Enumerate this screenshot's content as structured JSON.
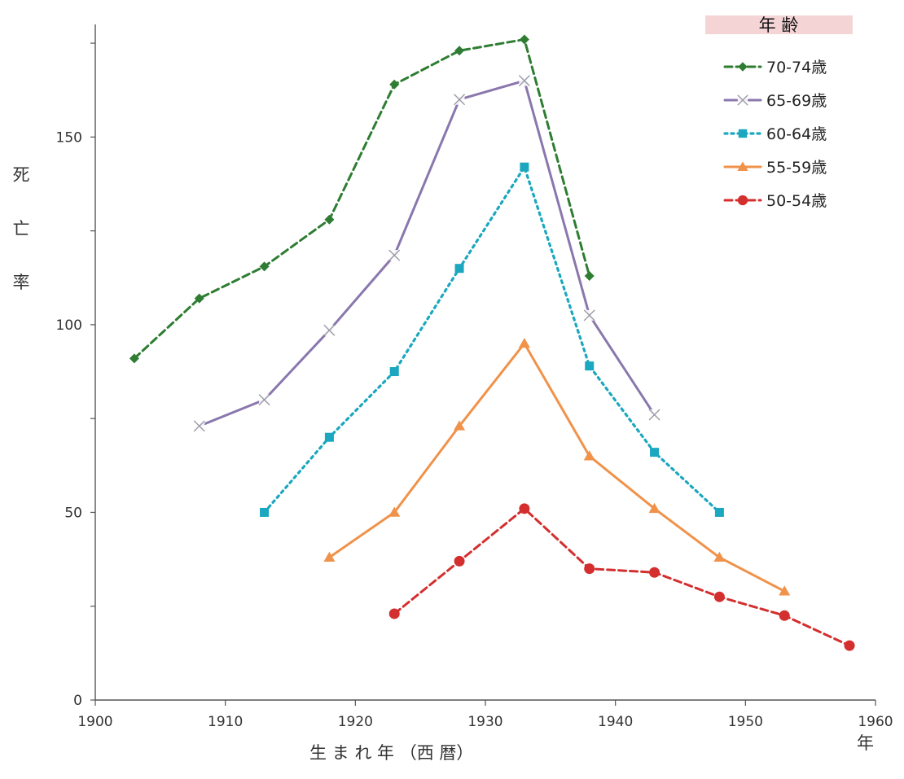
{
  "chart_data": {
    "type": "line",
    "xlabel": "生 ま れ 年 （西 暦）",
    "xunit": "年",
    "ylabel": "死亡率",
    "xlim": [
      1900,
      1960
    ],
    "ylim": [
      0,
      180
    ],
    "xticks": [
      1900,
      1910,
      1920,
      1930,
      1940,
      1950,
      1960
    ],
    "yticks": [
      0,
      50,
      100,
      150
    ],
    "legend_title": "年 齢",
    "legend_position": "top-right",
    "grid": false,
    "series": [
      {
        "name": "70-74歳",
        "color": "#2e7d32",
        "dash": "dashed",
        "marker": "diamond",
        "x": [
          1903,
          1908,
          1913,
          1918,
          1923,
          1928,
          1933,
          1938
        ],
        "y": [
          91,
          107,
          115.5,
          128,
          164,
          173,
          176,
          113
        ]
      },
      {
        "name": "65-69歳",
        "color": "#8a77ad",
        "dash": "solid",
        "marker": "x",
        "x": [
          1908,
          1913,
          1918,
          1923,
          1928,
          1933,
          1938,
          1943
        ],
        "y": [
          73,
          80,
          98.5,
          118.5,
          160,
          165,
          102.5,
          76
        ]
      },
      {
        "name": "60-64歳",
        "color": "#1aa7bf",
        "dash": "dotted",
        "marker": "square",
        "x": [
          1913,
          1918,
          1923,
          1928,
          1933,
          1938,
          1943,
          1948
        ],
        "y": [
          50,
          70,
          87.5,
          115,
          142,
          89,
          66,
          50
        ]
      },
      {
        "name": "55-59歳",
        "color": "#f0924a",
        "dash": "solid",
        "marker": "triangle",
        "x": [
          1918,
          1923,
          1928,
          1933,
          1938,
          1943,
          1948,
          1953
        ],
        "y": [
          38,
          50,
          73,
          95,
          65,
          51,
          38,
          29
        ]
      },
      {
        "name": "50-54歳",
        "color": "#d32f2f",
        "dash": "dashed",
        "marker": "circle",
        "x": [
          1923,
          1928,
          1933,
          1938,
          1943,
          1948,
          1953,
          1958
        ],
        "y": [
          23,
          37,
          51,
          35,
          34,
          27.5,
          22.5,
          14.5
        ]
      }
    ]
  }
}
